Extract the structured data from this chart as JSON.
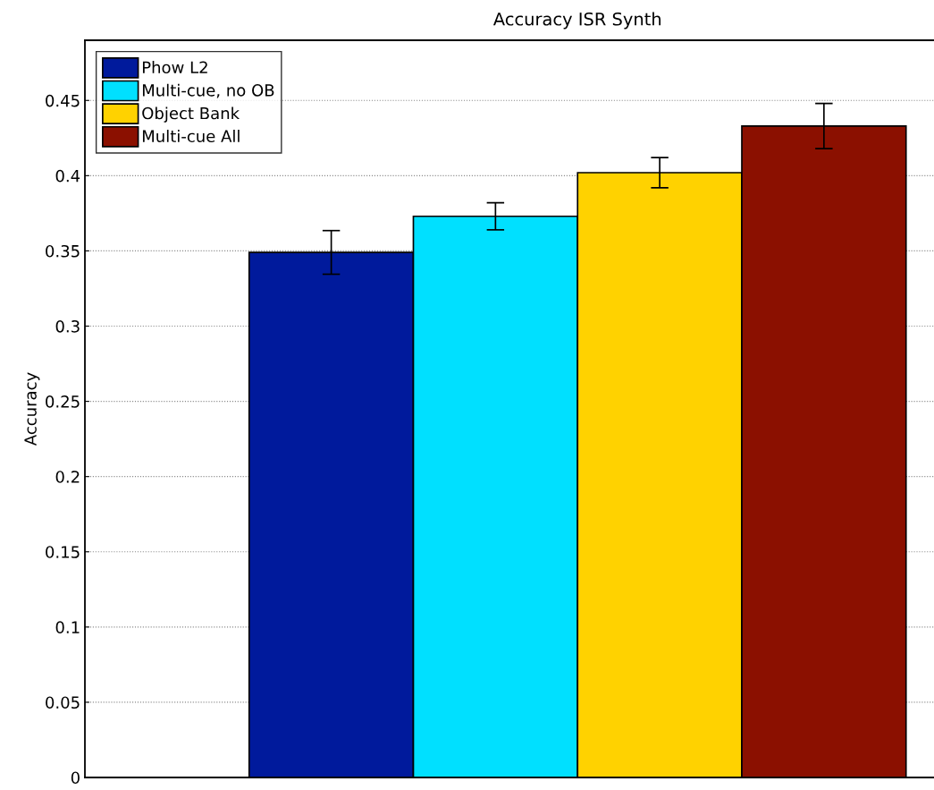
{
  "chart_data": {
    "type": "bar",
    "title": "Accuracy ISR Synth",
    "ylabel": "Accuracy",
    "categories": [
      null
    ],
    "series": [
      {
        "name": "Phow L2",
        "color": "#001a9c",
        "values": [
          0.349
        ],
        "errors": [
          0.0145
        ]
      },
      {
        "name": "Multi-cue, no OB",
        "color": "#00e0ff",
        "values": [
          0.373
        ],
        "errors": [
          0.009
        ]
      },
      {
        "name": "Object Bank",
        "color": "#ffd200",
        "values": [
          0.402
        ],
        "errors": [
          0.01
        ]
      },
      {
        "name": "Multi-cue All",
        "color": "#8b1000",
        "values": [
          0.433
        ],
        "errors": [
          0.015
        ]
      }
    ],
    "ylim": [
      0,
      0.49
    ],
    "yticks": [
      0,
      0.05,
      0.1,
      0.15,
      0.2,
      0.25,
      0.3,
      0.35,
      0.4,
      0.45
    ],
    "grid": "y",
    "legend": "top left"
  }
}
